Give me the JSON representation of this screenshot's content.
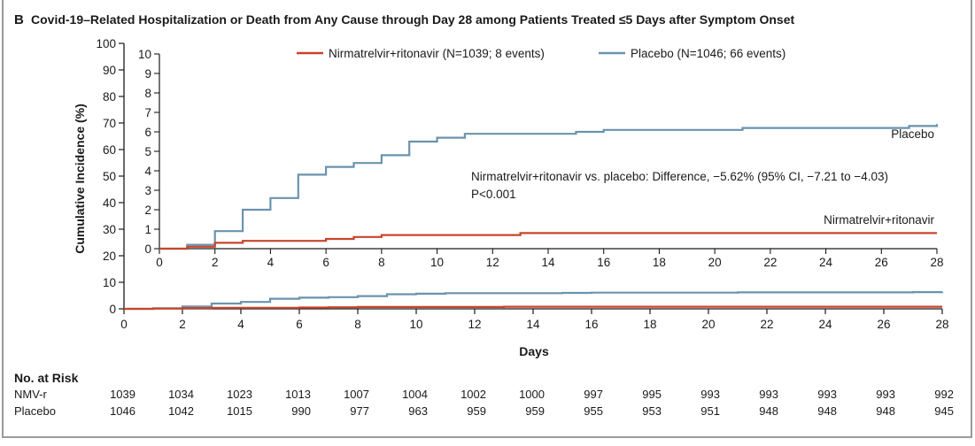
{
  "panel": {
    "letter": "B",
    "title": "Covid-19–Related Hospitalization or Death from Any Cause through Day 28 among Patients Treated ≤5 Days after Symptom Onset"
  },
  "colors": {
    "nmv": "#c8452b",
    "placebo": "#6a93ad",
    "frame": "#9a9a9a",
    "axis": "#1a1a1a"
  },
  "chart_data": {
    "type": "line",
    "step": true,
    "title": "Covid-19–Related Hospitalization or Death from Any Cause through Day 28 among Patients Treated ≤5 Days after Symptom Onset",
    "xlabel": "Days",
    "ylabel": "Cumulative Incidence (%)",
    "x_ticks": [
      0,
      2,
      4,
      6,
      8,
      10,
      12,
      14,
      16,
      18,
      20,
      22,
      24,
      26,
      28
    ],
    "main": {
      "xlim": [
        0,
        28
      ],
      "ylim": [
        0,
        100
      ],
      "y_ticks": [
        0,
        10,
        20,
        30,
        40,
        50,
        60,
        70,
        80,
        90,
        100
      ]
    },
    "inset": {
      "xlim": [
        0,
        28
      ],
      "ylim": [
        0,
        10
      ],
      "y_ticks": [
        0,
        1,
        2,
        3,
        4,
        5,
        6,
        7,
        8,
        9,
        10
      ]
    },
    "legend": {
      "position": "top",
      "entries": [
        {
          "label": "Nirmatrelvir+ritonavir (N=1039; 8 events)",
          "series": "nmv"
        },
        {
          "label": "Placebo (N=1046; 66 events)",
          "series": "placebo"
        }
      ]
    },
    "series": [
      {
        "key": "nmv",
        "name": "Nirmatrelvir+ritonavir",
        "label": "Nirmatrelvir+ritonavir",
        "color": "#c8452b",
        "x": [
          0,
          1,
          2,
          3,
          6,
          7,
          8,
          13,
          28
        ],
        "y": [
          0,
          0.1,
          0.3,
          0.4,
          0.5,
          0.6,
          0.7,
          0.8,
          0.8
        ]
      },
      {
        "key": "placebo",
        "name": "Placebo",
        "label": "Placebo",
        "color": "#6a93ad",
        "x": [
          0,
          1,
          2,
          3,
          4,
          5,
          6,
          7,
          8,
          9,
          10,
          11,
          15,
          16,
          21,
          27,
          28
        ],
        "y": [
          0,
          0.2,
          0.9,
          2.0,
          2.6,
          3.8,
          4.2,
          4.4,
          4.8,
          5.5,
          5.7,
          5.9,
          6.0,
          6.1,
          6.2,
          6.3,
          6.4
        ]
      }
    ],
    "annotation": {
      "line1": "Nirmatrelvir+ritonavir vs. placebo: Difference, −5.62% (95% CI, −7.21 to −4.03)",
      "line2": "P<0.001"
    }
  },
  "risk_table": {
    "title": "No. at Risk",
    "rows": [
      {
        "label": "NMV-r",
        "values": [
          "1039",
          "1034",
          "1023",
          "1013",
          "1007",
          "1004",
          "1002",
          "1000",
          "997",
          "995",
          "993",
          "993",
          "993",
          "993",
          "992"
        ]
      },
      {
        "label": "Placebo",
        "values": [
          "1046",
          "1042",
          "1015",
          "990",
          "977",
          "963",
          "959",
          "959",
          "955",
          "953",
          "951",
          "948",
          "948",
          "948",
          "945"
        ]
      }
    ]
  }
}
